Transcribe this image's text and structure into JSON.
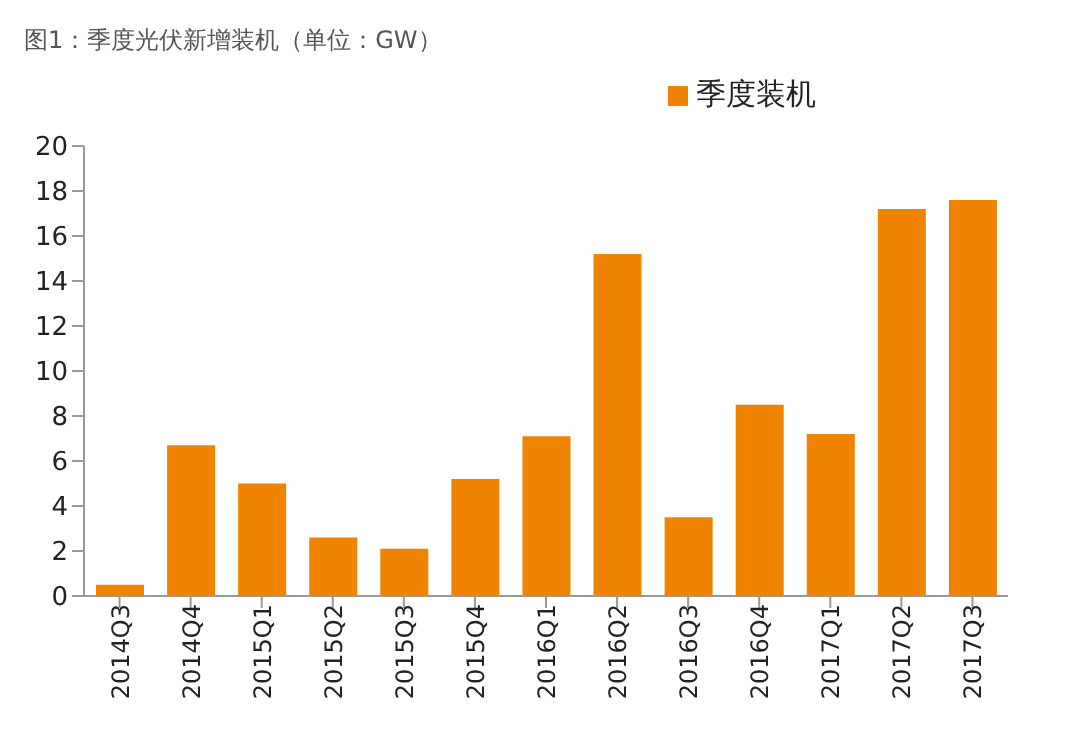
{
  "chart_data": {
    "type": "bar",
    "title": "图1：季度光伏新增装机（单位：GW）",
    "categories": [
      "2014Q3",
      "2014Q4",
      "2015Q1",
      "2015Q2",
      "2015Q3",
      "2015Q4",
      "2016Q1",
      "2016Q2",
      "2016Q3",
      "2016Q4",
      "2017Q1",
      "2017Q2",
      "2017Q3"
    ],
    "series": [
      {
        "name": "季度装机",
        "color": "#f08300",
        "values": [
          0.5,
          6.7,
          5.0,
          2.6,
          2.1,
          5.2,
          7.1,
          15.2,
          3.5,
          8.5,
          7.2,
          17.2,
          17.6
        ]
      }
    ],
    "ylim": [
      0,
      20
    ],
    "yticks": [
      0,
      2,
      4,
      6,
      8,
      10,
      12,
      14,
      16,
      18,
      20
    ],
    "grid": false,
    "legend": "top"
  }
}
